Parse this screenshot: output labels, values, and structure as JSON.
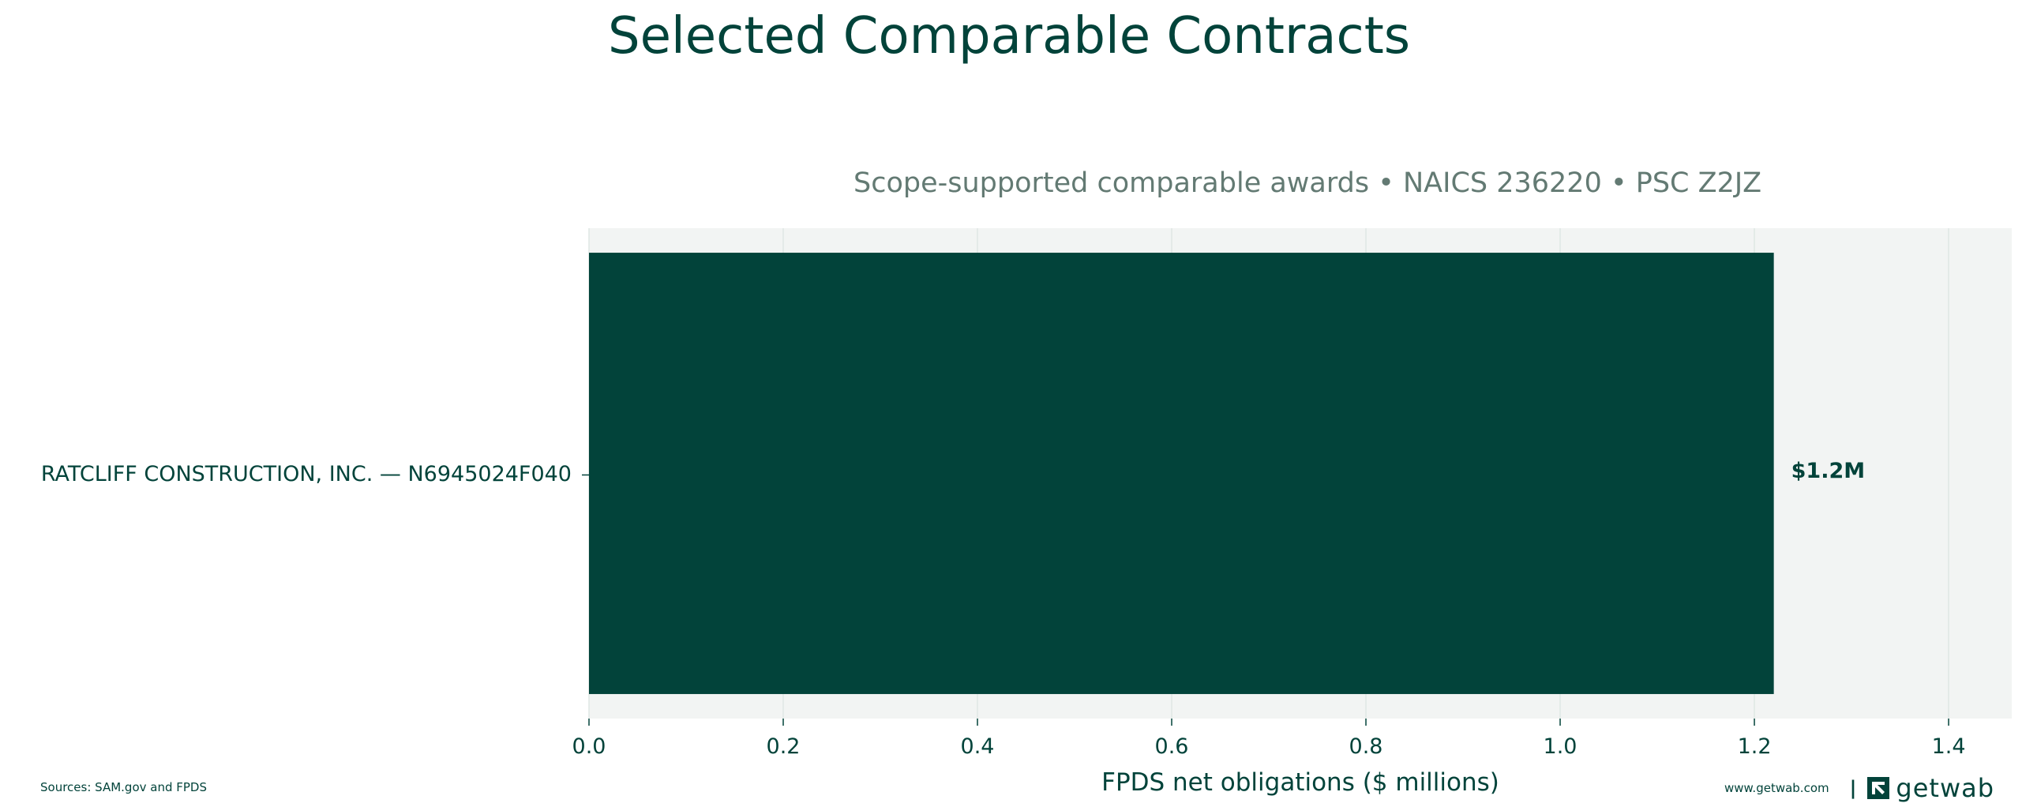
{
  "title": "Selected Comparable Contracts",
  "subtitle": "Scope-supported comparable awards • NAICS 236220 • PSC Z2JZ",
  "colors": {
    "bar": "#02433a",
    "plot_background": "#f2f4f3",
    "grid": "#dfe7e4",
    "text": "#02433a",
    "subtitle": "#637a73"
  },
  "chart_data": {
    "type": "bar",
    "orientation": "horizontal",
    "categories": [
      "RATCLIFF CONSTRUCTION, INC. — N6945024F040"
    ],
    "values": [
      1.22
    ],
    "value_labels": [
      "$1.2M"
    ],
    "xlabel": "FPDS net obligations ($ millions)",
    "ylabel": "",
    "xlim": [
      0,
      1.465
    ],
    "xticks": [
      0,
      0.2,
      0.4,
      0.6,
      0.8,
      1.0,
      1.2,
      1.4
    ],
    "xtick_labels": [
      "0.0",
      "0.2",
      "0.4",
      "0.6",
      "0.8",
      "1.0",
      "1.2",
      "1.4"
    ],
    "grid": "vertical"
  },
  "footer": {
    "source": "Sources: SAM.gov and FPDS",
    "url": "www.getwab.com",
    "separator": "|",
    "brand_icon": "getwab-logo-icon",
    "brand_name": "getwab"
  }
}
